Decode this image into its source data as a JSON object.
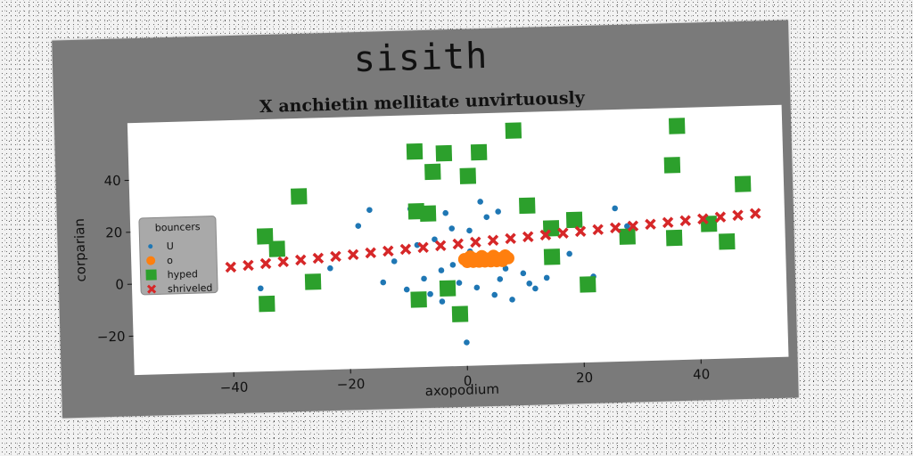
{
  "chart_data": {
    "type": "scatter",
    "suptitle": "sisith",
    "title": "X anchietin mellitate unvirtuously",
    "xlabel": "axopodium",
    "ylabel": "corparian",
    "xlim": [
      -57,
      55
    ],
    "ylim": [
      -35,
      62
    ],
    "xticks": [
      -40,
      -20,
      0,
      20,
      40
    ],
    "yticks": [
      -20,
      0,
      20,
      40
    ],
    "grid": false,
    "legend": {
      "title": "bouncers",
      "position": "center-left"
    },
    "colors": {
      "U": "#1f77b4",
      "o": "#ff7f0e",
      "hyped": "#2ca02c",
      "shriveled": "#d62728"
    },
    "series": [
      {
        "name": "U",
        "marker": "circle",
        "x": [
          -35,
          -23,
          -18,
          -14,
          -12,
          -10,
          -8,
          -7,
          -6,
          -5,
          -4,
          -3,
          -2,
          -1,
          0,
          1,
          2,
          3,
          4,
          5,
          6,
          7,
          8,
          10,
          12,
          14,
          18,
          22,
          26,
          28,
          -16,
          -9,
          -2,
          3,
          11,
          6,
          -4,
          1
        ],
        "y": [
          -3,
          4,
          20,
          -2,
          6,
          -5,
          12,
          -1,
          -7,
          14,
          -10,
          24,
          18,
          -3,
          -26,
          9,
          -5,
          28,
          22,
          -8,
          24,
          2,
          -10,
          0,
          -6,
          -2,
          7,
          -2,
          24,
          17,
          26,
          26,
          4,
          8,
          -4,
          -2,
          2,
          17
        ]
      },
      {
        "name": "o",
        "marker": "circle",
        "x": [
          0,
          1,
          2,
          3,
          4,
          5,
          6,
          7,
          1.5,
          2.5,
          3.5,
          4.5,
          5.5,
          6.5,
          0.5,
          7.5
        ],
        "y": [
          6,
          7,
          6,
          7,
          6,
          7,
          6,
          7,
          5,
          5,
          5,
          5,
          5,
          5,
          5,
          6
        ]
      },
      {
        "name": "hyped",
        "marker": "square",
        "x": [
          -8,
          -3,
          3,
          9,
          37,
          -5,
          36,
          1,
          -28,
          48,
          -8,
          -6,
          11,
          19,
          15,
          -34,
          -32,
          15,
          21,
          28,
          36,
          42,
          45,
          -26,
          -34,
          -3,
          -8,
          -1
        ],
        "y": [
          48,
          47,
          47,
          55,
          55,
          40,
          40,
          38,
          32,
          32,
          25,
          24,
          26,
          20,
          17,
          17,
          12,
          6,
          -5,
          13,
          12,
          17,
          10,
          -1,
          -9,
          -5,
          -9,
          -15
        ]
      },
      {
        "name": "shriveled",
        "marker": "x",
        "x": [
          -40,
          -37,
          -34,
          -31,
          -28,
          -25,
          -22,
          -19,
          -16,
          -13,
          -10,
          -7,
          -4,
          -1,
          2,
          5,
          8,
          11,
          14,
          17,
          20,
          23,
          26,
          29,
          32,
          35,
          38,
          41,
          44,
          47,
          50
        ],
        "y": [
          5.5,
          6.0,
          6.5,
          7.0,
          7.5,
          8.0,
          8.5,
          9.0,
          9.5,
          10.0,
          10.5,
          11.0,
          11.5,
          12.0,
          12.5,
          13.0,
          13.5,
          14.0,
          14.5,
          15.0,
          15.5,
          16.0,
          16.5,
          17.0,
          17.5,
          18.0,
          18.5,
          19.0,
          19.5,
          20.0,
          20.5
        ]
      }
    ]
  }
}
